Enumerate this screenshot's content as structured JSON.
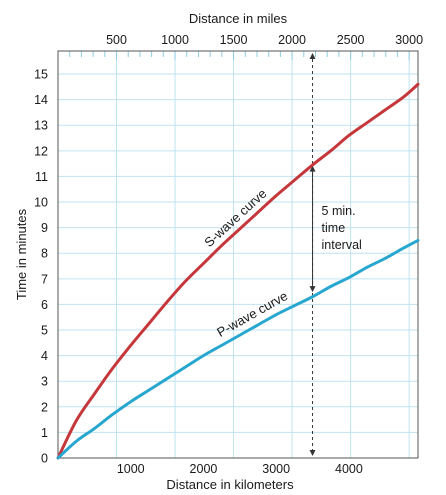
{
  "chart_data": {
    "type": "line",
    "xlabel": "Distance in kilometers",
    "x2label": "Distance in miles",
    "ylabel": "Time in minutes",
    "xlim": [
      0,
      4950
    ],
    "ylim": [
      0,
      15.9
    ],
    "x_ticks": [
      1000,
      2000,
      3000,
      4000
    ],
    "x2_ticks": [
      500,
      1000,
      1500,
      2000,
      2500,
      3000
    ],
    "y_ticks": [
      0,
      1,
      2,
      3,
      4,
      5,
      6,
      7,
      8,
      9,
      10,
      11,
      12,
      13,
      14,
      15
    ],
    "grid": true,
    "colors": {
      "s_wave": "#c5373a",
      "p_wave": "#27a7cf",
      "grid": "#bfe3f0",
      "frame": "#555555",
      "background": "#ffffff"
    },
    "series": [
      {
        "label": "S-wave curve",
        "color": "#c5373a",
        "x": [
          0,
          250,
          500,
          750,
          1000,
          1250,
          1500,
          1750,
          2000,
          2250,
          2500,
          2750,
          3000,
          3250,
          3500,
          3750,
          4000,
          4250,
          4500,
          4750,
          4950
        ],
        "y": [
          0,
          1.45,
          2.5,
          3.5,
          4.4,
          5.25,
          6.1,
          6.9,
          7.6,
          8.3,
          8.95,
          9.6,
          10.25,
          10.85,
          11.45,
          12.0,
          12.6,
          13.1,
          13.6,
          14.1,
          14.6
        ]
      },
      {
        "label": "P-wave curve",
        "color": "#27a7cf",
        "x": [
          0,
          250,
          500,
          750,
          1000,
          1250,
          1500,
          1750,
          2000,
          2250,
          2500,
          2750,
          3000,
          3250,
          3500,
          3750,
          4000,
          4250,
          4500,
          4750,
          4950
        ],
        "y": [
          0,
          0.65,
          1.15,
          1.7,
          2.2,
          2.65,
          3.1,
          3.55,
          4.0,
          4.4,
          4.8,
          5.2,
          5.6,
          5.95,
          6.3,
          6.7,
          7.05,
          7.45,
          7.8,
          8.2,
          8.5
        ]
      }
    ],
    "annotations": [
      {
        "text_lines": [
          "5 min.",
          "time",
          "interval"
        ],
        "x": 3500,
        "y_top": 11.5,
        "y_bottom": 6.4
      }
    ]
  }
}
